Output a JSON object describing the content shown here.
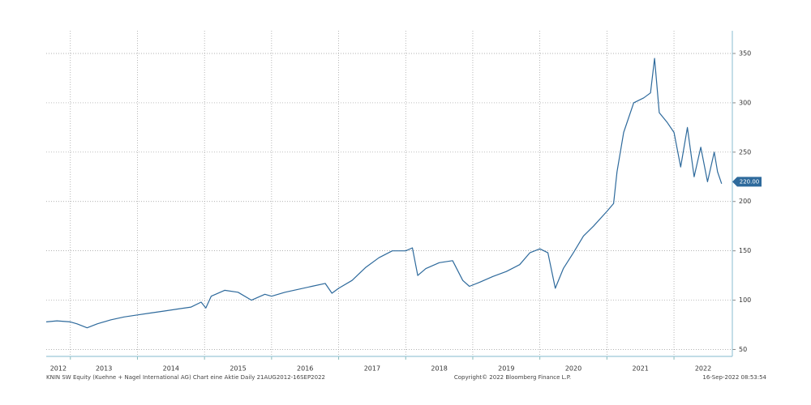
{
  "chart_data": {
    "type": "line",
    "x": [
      2012.64,
      2012.8,
      2013.0,
      2013.1,
      2013.25,
      2013.4,
      2013.6,
      2013.8,
      2014.0,
      2014.2,
      2014.4,
      2014.6,
      2014.8,
      2014.95,
      2015.02,
      2015.1,
      2015.3,
      2015.5,
      2015.7,
      2015.9,
      2016.0,
      2016.2,
      2016.4,
      2016.6,
      2016.8,
      2016.9,
      2017.0,
      2017.2,
      2017.4,
      2017.6,
      2017.8,
      2018.0,
      2018.1,
      2018.18,
      2018.3,
      2018.5,
      2018.7,
      2018.85,
      2018.95,
      2019.1,
      2019.3,
      2019.5,
      2019.7,
      2019.85,
      2020.0,
      2020.12,
      2020.23,
      2020.35,
      2020.5,
      2020.65,
      2020.8,
      2021.0,
      2021.1,
      2021.15,
      2021.25,
      2021.4,
      2021.55,
      2021.65,
      2021.71,
      2021.78,
      2021.9,
      2022.0,
      2022.1,
      2022.2,
      2022.3,
      2022.4,
      2022.5,
      2022.6,
      2022.65,
      2022.71
    ],
    "values": [
      78,
      79,
      78,
      76,
      72,
      76,
      80,
      83,
      85,
      87,
      89,
      91,
      93,
      98,
      92,
      104,
      110,
      108,
      100,
      106,
      104,
      108,
      111,
      114,
      117,
      107,
      112,
      120,
      133,
      143,
      150,
      150,
      153,
      125,
      132,
      138,
      140,
      120,
      114,
      118,
      124,
      129,
      136,
      148,
      152,
      148,
      112,
      132,
      148,
      165,
      175,
      190,
      198,
      230,
      270,
      300,
      305,
      310,
      345,
      290,
      280,
      270,
      235,
      275,
      225,
      255,
      220,
      250,
      230,
      218
    ],
    "color": "#2e6a9c",
    "xlim": [
      2012.64,
      2022.87
    ],
    "xticks": [
      2012,
      2013,
      2014,
      2015,
      2016,
      2017,
      2018,
      2019,
      2020,
      2021,
      2022
    ],
    "ylim": [
      43,
      373
    ],
    "yticks": [
      50,
      100,
      150,
      200,
      250,
      300,
      350
    ],
    "grid": true,
    "last_price": {
      "value": 220,
      "label": "220.00"
    },
    "footer_left": "KNIN SW Equity (Kuehne + Nagel International AG) Chart eine Aktie  Daily 21AUG2012-16SEP2022",
    "footer_center": "Copyright© 2022 Bloomberg Finance L.P.",
    "footer_right": "16-Sep-2022 08:53:54"
  }
}
